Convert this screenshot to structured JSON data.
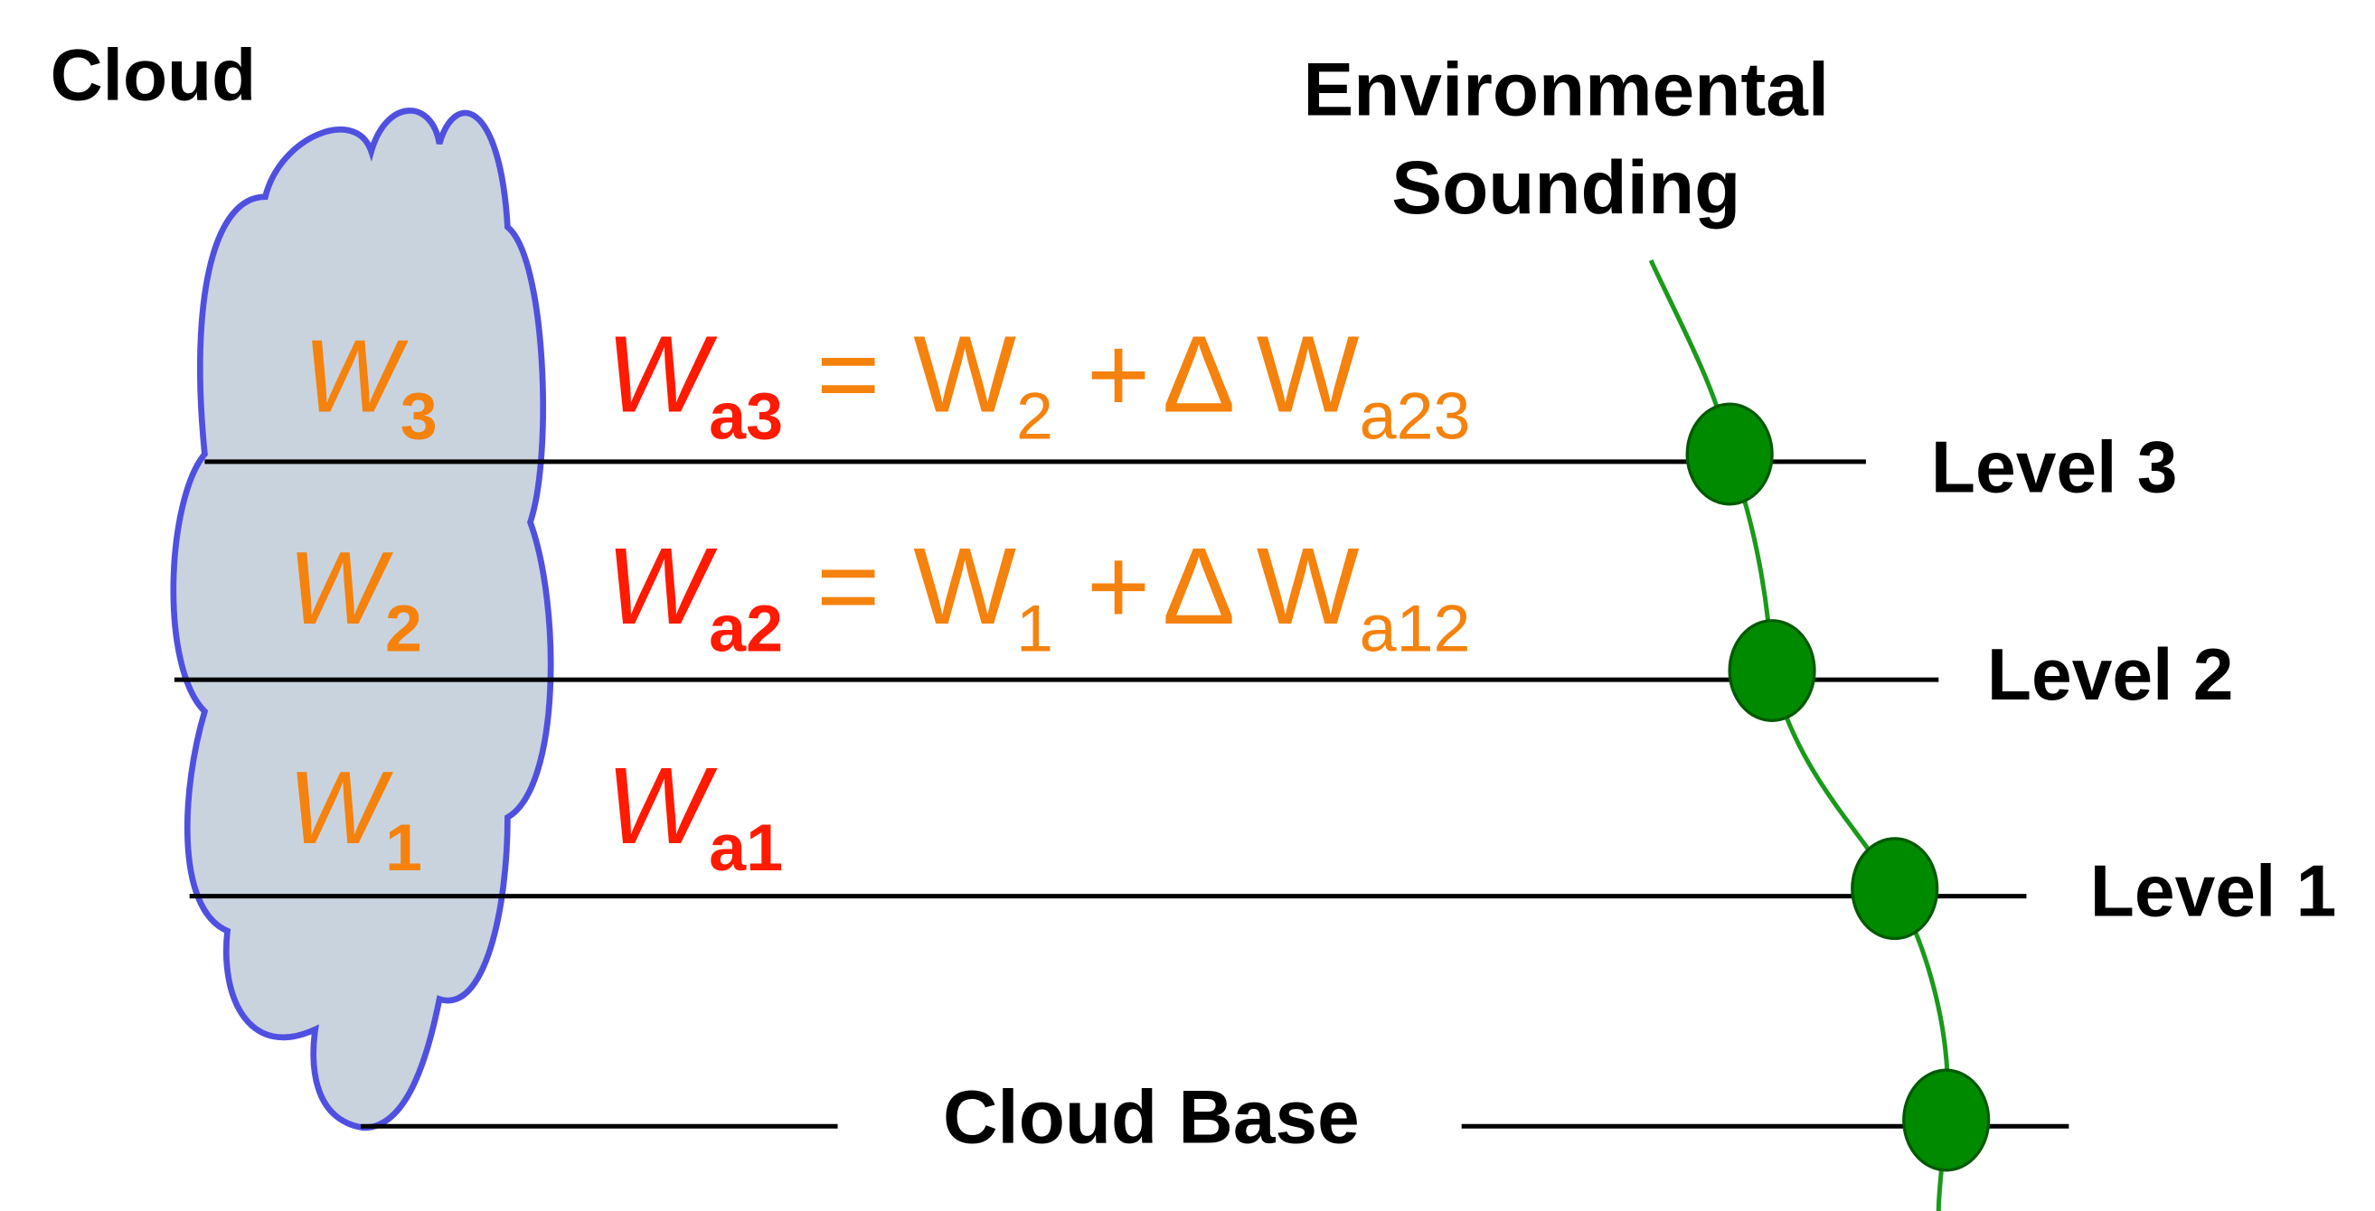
{
  "title": "Cloud",
  "sounding_label": [
    "Environmental",
    "Sounding"
  ],
  "levels": [
    "Level 3",
    "Level 2",
    "Level 1"
  ],
  "cloud_base_label": "Cloud Base",
  "cloud_values": [
    {
      "symbol": "W",
      "subscript": "3"
    },
    {
      "symbol": "W",
      "subscript": "2"
    },
    {
      "symbol": "W",
      "subscript": "1"
    }
  ],
  "equations": [
    {
      "lhs_symbol": "W",
      "lhs_subscript": "a3",
      "equals": "=",
      "term_symbol": "W",
      "term_subscript": "2",
      "plus": "+",
      "delta": "Δ",
      "delta_symbol": "W",
      "delta_subscript": "a23"
    },
    {
      "lhs_symbol": "W",
      "lhs_subscript": "a2",
      "equals": "=",
      "term_symbol": "W",
      "term_subscript": "1",
      "plus": "+",
      "delta": "Δ",
      "delta_symbol": "W",
      "delta_subscript": "a12"
    },
    {
      "lhs_symbol": "W",
      "lhs_subscript": "a1"
    }
  ]
}
